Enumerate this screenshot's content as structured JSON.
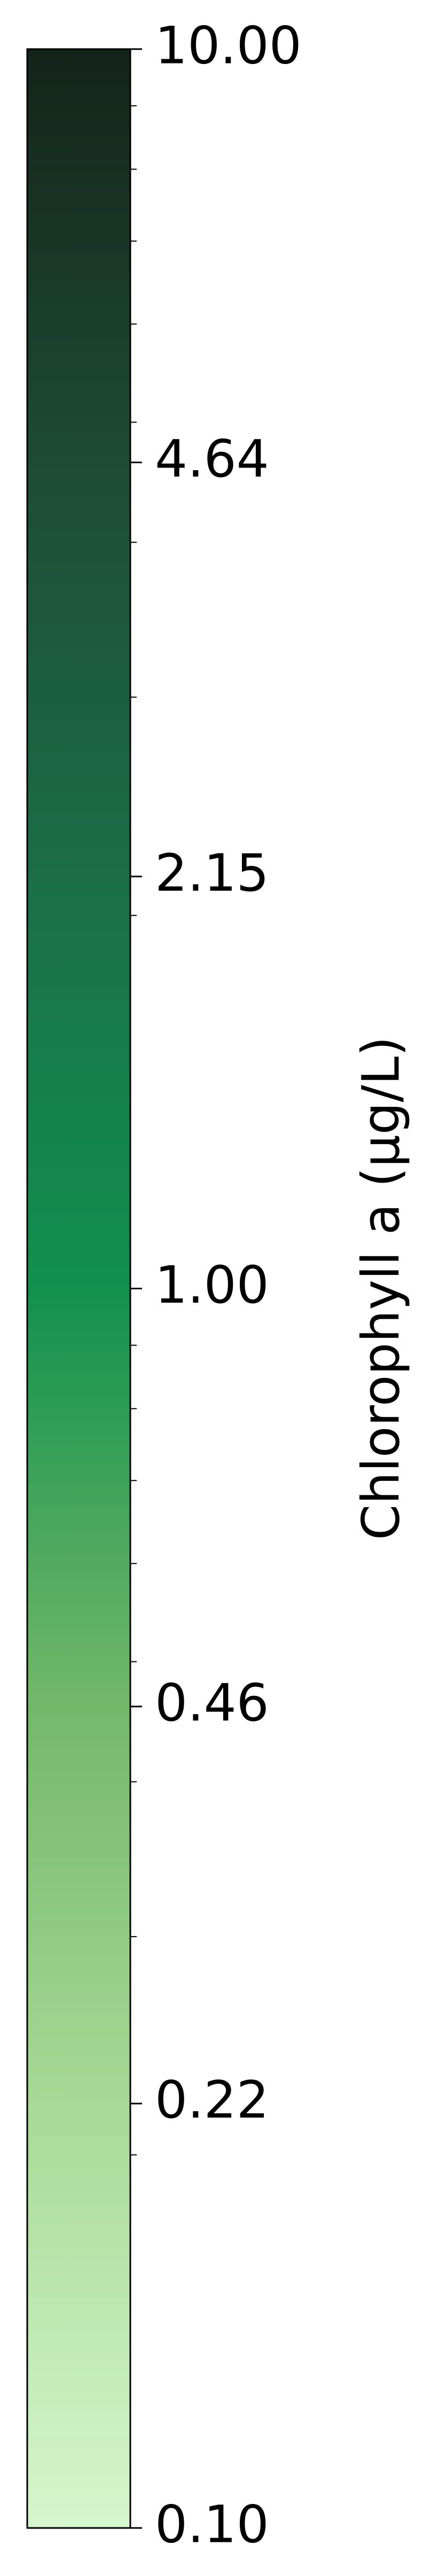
{
  "chart_data": {
    "type": "colorbar",
    "orientation": "vertical",
    "scale": "log",
    "range": [
      0.1,
      10.0
    ],
    "label": "Chlorophyll a (µg/L)",
    "major_ticks": [
      {
        "value": 10.0,
        "label": "10.00"
      },
      {
        "value": 4.64,
        "label": "4.64"
      },
      {
        "value": 2.15,
        "label": "2.15"
      },
      {
        "value": 1.0,
        "label": "1.00"
      },
      {
        "value": 0.46,
        "label": "0.46"
      },
      {
        "value": 0.22,
        "label": "0.22"
      },
      {
        "value": 0.1,
        "label": "0.10"
      }
    ],
    "minor_ticks": [
      0.2,
      0.3,
      0.4,
      0.5,
      0.6,
      0.7,
      0.8,
      0.9,
      2,
      3,
      4,
      5,
      6,
      7,
      8,
      9
    ],
    "colormap": [
      {
        "value": 0.1,
        "color": "#d5f6ce"
      },
      {
        "value": 0.22,
        "color": "#a8d996"
      },
      {
        "value": 0.46,
        "color": "#73b86a"
      },
      {
        "value": 1.0,
        "color": "#11914d"
      },
      {
        "value": 2.15,
        "color": "#1b6e48"
      },
      {
        "value": 4.64,
        "color": "#1e4b36"
      },
      {
        "value": 10.0,
        "color": "#14241a"
      }
    ]
  }
}
